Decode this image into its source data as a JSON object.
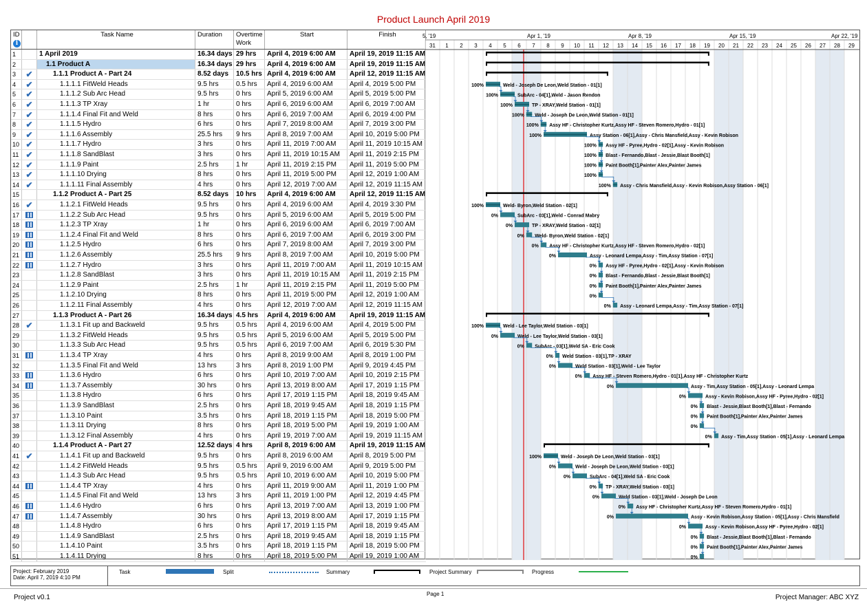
{
  "title": "Product Launch April 2019",
  "columns": {
    "id": "ID",
    "name": "Task Name",
    "duration": "Duration",
    "overtime": "Overtime Work",
    "start": "Start",
    "finish": "Finish"
  },
  "timescale": {
    "weeks": [
      "5, '19",
      "Apr 1, '19",
      "Apr 8, '19",
      "Apr 15, '19",
      "Apr 22, '19"
    ],
    "days": [
      "31",
      "1",
      "2",
      "3",
      "4",
      "5",
      "6",
      "7",
      "8",
      "9",
      "10",
      "11",
      "12",
      "13",
      "14",
      "15",
      "16",
      "17",
      "18",
      "19",
      "20",
      "21",
      "22",
      "23",
      "24",
      "25",
      "26",
      "27",
      "28",
      "29"
    ]
  },
  "tasks": [
    {
      "id": "1",
      "ind": "",
      "name": "1 April 2019",
      "dur": "16.34 days",
      "ot": "29 hrs",
      "start": "April 4, 2019 6:00 AM",
      "finish": "April 19, 2019 11:15 AM",
      "lvl": 0,
      "bold": true,
      "type": "summary",
      "s": 4,
      "e": 19.47
    },
    {
      "id": "2",
      "ind": "",
      "name": "1.1 Product A",
      "dur": "16.34 days",
      "ot": "29 hrs",
      "start": "April 4, 2019 6:00 AM",
      "finish": "April 19, 2019 11:15 AM",
      "lvl": 1,
      "bold": true,
      "sel": true,
      "type": "summary",
      "s": 4,
      "e": 19.47
    },
    {
      "id": "3",
      "ind": "check",
      "name": "1.1.1 Product A - Part 24",
      "dur": "8.52 days",
      "ot": "10.5 hrs",
      "start": "April 4, 2019 6:00 AM",
      "finish": "April 12, 2019 11:15 AM",
      "lvl": 2,
      "bold": true,
      "type": "summary",
      "s": 4,
      "e": 12.47
    },
    {
      "id": "4",
      "ind": "check",
      "name": "1.1.1.1 FitWeld Heads",
      "dur": "9.5 hrs",
      "ot": "0.5 hrs",
      "start": "April 4, 2019 6:00 AM",
      "finish": "April 4, 2019 5:00 PM",
      "lvl": 3,
      "type": "task",
      "s": 4,
      "e": 5,
      "p": "100%",
      "lbl": "Weld - Joseph De Leon,Weld Station - 01[1]"
    },
    {
      "id": "5",
      "ind": "check",
      "name": "1.1.1.2 Sub Arc Head",
      "dur": "9.5 hrs",
      "ot": "0 hrs",
      "start": "April 5, 2019 6:00 AM",
      "finish": "April 5, 2019 5:00 PM",
      "lvl": 3,
      "type": "task",
      "s": 5,
      "e": 6,
      "p": "100%",
      "lbl": "SubArc - 04[1],Weld - Jason Rendon"
    },
    {
      "id": "6",
      "ind": "check",
      "name": "1.1.1.3 TP Xray",
      "dur": "1 hr",
      "ot": "0 hrs",
      "start": "April 6, 2019 6:00 AM",
      "finish": "April 6, 2019 7:00 AM",
      "lvl": 3,
      "type": "task",
      "s": 6,
      "e": 7,
      "p": "100%",
      "lbl": "TP - XRAY,Weld Station - 01[1]"
    },
    {
      "id": "7",
      "ind": "check",
      "name": "1.1.1.4 Final Fit and Weld",
      "dur": "8 hrs",
      "ot": "0 hrs",
      "start": "April 6, 2019 7:00 AM",
      "finish": "April 6, 2019 4:00 PM",
      "lvl": 3,
      "type": "task",
      "s": 6.8,
      "e": 7.2,
      "p": "100%",
      "lbl": "Weld - Joseph De Leon,Weld Station - 01[1]"
    },
    {
      "id": "8",
      "ind": "check",
      "name": "1.1.1.5 Hydro",
      "dur": "6 hrs",
      "ot": "0 hrs",
      "start": "April 7, 2019 8:00 AM",
      "finish": "April 7, 2019 3:00 PM",
      "lvl": 3,
      "type": "task",
      "s": 7.8,
      "e": 8.2,
      "p": "100%",
      "lbl": "Assy HF - Christopher Kurtz,Assy HF - Steven Romero,Hydro - 01[1]"
    },
    {
      "id": "9",
      "ind": "check",
      "name": "1.1.1.6 Assembly",
      "dur": "25.5 hrs",
      "ot": "9 hrs",
      "start": "April 8, 2019 7:00 AM",
      "finish": "April 10, 2019 5:00 PM",
      "lvl": 3,
      "type": "task",
      "s": 8,
      "e": 11,
      "p": "100%",
      "lbl": "Assy Station - 06[1],Assy - Chris Mansfield,Assy - Kevin Robison"
    },
    {
      "id": "10",
      "ind": "check",
      "name": "1.1.1.7 Hydro",
      "dur": "3 hrs",
      "ot": "0 hrs",
      "start": "April 11, 2019 7:00 AM",
      "finish": "April 11, 2019 10:15 AM",
      "lvl": 3,
      "type": "task",
      "s": 11.8,
      "e": 12.1,
      "p": "100%",
      "lbl": "Assy HF - Pyree,Hydro - 02[1],Assy - Kevin Robison"
    },
    {
      "id": "11",
      "ind": "check",
      "name": "1.1.1.8 SandBlast",
      "dur": "3 hrs",
      "ot": "0 hrs",
      "start": "April 11, 2019 10:15 AM",
      "finish": "April 11, 2019 2:15 PM",
      "lvl": 3,
      "type": "task",
      "s": 11.8,
      "e": 12.1,
      "p": "100%",
      "lbl": "Blast - Fernando,Blast - Jessie,Blast Booth[1]"
    },
    {
      "id": "12",
      "ind": "check",
      "name": "1.1.1.9 Paint",
      "dur": "2.5 hrs",
      "ot": "1 hr",
      "start": "April 11, 2019 2:15 PM",
      "finish": "April 11, 2019 5:00 PM",
      "lvl": 3,
      "type": "task",
      "s": 11.8,
      "e": 12.1,
      "p": "100%",
      "lbl": "Paint Booth[1],Painter Alex,Painter James"
    },
    {
      "id": "13",
      "ind": "check",
      "name": "1.1.1.10 Drying",
      "dur": "8 hrs",
      "ot": "0 hrs",
      "start": "April 11, 2019 5:00 PM",
      "finish": "April 12, 2019 1:00 AM",
      "lvl": 3,
      "type": "task",
      "s": 11.8,
      "e": 12.1,
      "p": "100%",
      "lbl": ""
    },
    {
      "id": "14",
      "ind": "check",
      "name": "1.1.1.11 Final Assembly",
      "dur": "4 hrs",
      "ot": "0 hrs",
      "start": "April 12, 2019 7:00 AM",
      "finish": "April 12, 2019 11:15 AM",
      "lvl": 3,
      "type": "task",
      "s": 12.8,
      "e": 13.1,
      "p": "100%",
      "lbl": "Assy - Chris Mansfield,Assy - Kevin Robison,Assy Station - 06[1]"
    },
    {
      "id": "15",
      "ind": "",
      "name": "1.1.2 Product A - Part 25",
      "dur": "8.52 days",
      "ot": "10 hrs",
      "start": "April 4, 2019 6:00 AM",
      "finish": "April 12, 2019 11:15 AM",
      "lvl": 2,
      "bold": true,
      "type": "summary",
      "s": 4,
      "e": 12.47
    },
    {
      "id": "16",
      "ind": "check",
      "name": "1.1.2.1 FitWeld Heads",
      "dur": "9.5 hrs",
      "ot": "0 hrs",
      "start": "April 4, 2019 6:00 AM",
      "finish": "April 4, 2019 3:30 PM",
      "lvl": 3,
      "type": "task",
      "s": 4,
      "e": 5,
      "p": "100%",
      "lbl": "Weld- Byron,Weld Station - 02[1]"
    },
    {
      "id": "17",
      "ind": "cal",
      "name": "1.1.2.2 Sub Arc Head",
      "dur": "9.5 hrs",
      "ot": "0 hrs",
      "start": "April 5, 2019 6:00 AM",
      "finish": "April 5, 2019 5:00 PM",
      "lvl": 3,
      "type": "task",
      "s": 5,
      "e": 6,
      "p": "0%",
      "lbl": "SubArc - 03[1],Weld - Conrad Mabry"
    },
    {
      "id": "18",
      "ind": "cal",
      "name": "1.1.2.3 TP Xray",
      "dur": "1 hr",
      "ot": "0 hrs",
      "start": "April 6, 2019 6:00 AM",
      "finish": "April 6, 2019 7:00 AM",
      "lvl": 3,
      "type": "task",
      "s": 6,
      "e": 7,
      "p": "0%",
      "lbl": "TP - XRAY,Weld Station - 02[1]"
    },
    {
      "id": "19",
      "ind": "cal",
      "name": "1.1.2.4 Final Fit and Weld",
      "dur": "8 hrs",
      "ot": "0 hrs",
      "start": "April 6, 2019 7:00 AM",
      "finish": "April 6, 2019 3:00 PM",
      "lvl": 3,
      "type": "task",
      "s": 6.8,
      "e": 7.2,
      "p": "0%",
      "lbl": "Weld- Byron,Weld Station - 02[1]"
    },
    {
      "id": "20",
      "ind": "cal",
      "name": "1.1.2.5 Hydro",
      "dur": "6 hrs",
      "ot": "0 hrs",
      "start": "April 7, 2019 8:00 AM",
      "finish": "April 7, 2019 3:00 PM",
      "lvl": 3,
      "type": "task",
      "s": 7.8,
      "e": 8.2,
      "p": "0%",
      "lbl": "Assy HF - Christopher Kurtz,Assy HF - Steven Romero,Hydro - 02[1]"
    },
    {
      "id": "21",
      "ind": "cal",
      "name": "1.1.2.6 Assembly",
      "dur": "25.5 hrs",
      "ot": "9 hrs",
      "start": "April 8, 2019 7:00 AM",
      "finish": "April 10, 2019 5:00 PM",
      "lvl": 3,
      "type": "task",
      "s": 9,
      "e": 11,
      "p": "0%",
      "lbl": "Assy - Leonard Lempa,Assy - Tim,Assy Station - 07[1]"
    },
    {
      "id": "22",
      "ind": "cal",
      "name": "1.1.2.7 Hydro",
      "dur": "3 hrs",
      "ot": "0 hrs",
      "start": "April 11, 2019 7:00 AM",
      "finish": "April 11, 2019 10:15 AM",
      "lvl": 3,
      "type": "task",
      "s": 11.8,
      "e": 12.1,
      "p": "0%",
      "lbl": "Assy HF - Pyree,Hydro - 02[1],Assy - Kevin Robison"
    },
    {
      "id": "23",
      "ind": "",
      "name": "1.1.2.8 SandBlast",
      "dur": "3 hrs",
      "ot": "0 hrs",
      "start": "April 11, 2019 10:15 AM",
      "finish": "April 11, 2019 2:15 PM",
      "lvl": 3,
      "type": "task",
      "s": 11.8,
      "e": 12.1,
      "p": "0%",
      "lbl": "Blast - Fernando,Blast - Jessie,Blast Booth[1]"
    },
    {
      "id": "24",
      "ind": "",
      "name": "1.1.2.9 Paint",
      "dur": "2.5 hrs",
      "ot": "1 hr",
      "start": "April 11, 2019 2:15 PM",
      "finish": "April 11, 2019 5:00 PM",
      "lvl": 3,
      "type": "task",
      "s": 11.8,
      "e": 12.1,
      "p": "0%",
      "lbl": "Paint Booth[1],Painter Alex,Painter James"
    },
    {
      "id": "25",
      "ind": "",
      "name": "1.1.2.10 Drying",
      "dur": "8 hrs",
      "ot": "0 hrs",
      "start": "April 11, 2019 5:00 PM",
      "finish": "April 12, 2019 1:00 AM",
      "lvl": 3,
      "type": "task",
      "s": 11.8,
      "e": 12.1,
      "p": "0%",
      "lbl": ""
    },
    {
      "id": "26",
      "ind": "",
      "name": "1.1.2.11 Final Assembly",
      "dur": "4 hrs",
      "ot": "0 hrs",
      "start": "April 12, 2019 7:00 AM",
      "finish": "April 12, 2019 11:15 AM",
      "lvl": 3,
      "type": "task",
      "s": 12.8,
      "e": 13.1,
      "p": "0%",
      "lbl": "Assy - Leonard Lempa,Assy - Tim,Assy Station - 07[1]"
    },
    {
      "id": "27",
      "ind": "",
      "name": "1.1.3 Product A - Part 26",
      "dur": "16.34 days",
      "ot": "4.5 hrs",
      "start": "April 4, 2019 6:00 AM",
      "finish": "April 19, 2019 11:15 AM",
      "lvl": 2,
      "bold": true,
      "type": "summary",
      "s": 4,
      "e": 19.47
    },
    {
      "id": "28",
      "ind": "check",
      "name": "1.1.3.1 Fit up and Backweld",
      "dur": "9.5 hrs",
      "ot": "0.5 hrs",
      "start": "April 4, 2019 6:00 AM",
      "finish": "April 4, 2019 5:00 PM",
      "lvl": 3,
      "type": "task",
      "s": 4,
      "e": 5,
      "p": "100%",
      "lbl": "Weld - Lee Taylor,Weld Station - 03[1]"
    },
    {
      "id": "29",
      "ind": "",
      "name": "1.1.3.2 FitWeld Heads",
      "dur": "9.5 hrs",
      "ot": "0.5 hrs",
      "start": "April 5, 2019 6:00 AM",
      "finish": "April 5, 2019 5:00 PM",
      "lvl": 3,
      "type": "task",
      "s": 5,
      "e": 6,
      "p": "0%",
      "lbl": "Weld - Lee Taylor,Weld Station - 03[1]"
    },
    {
      "id": "30",
      "ind": "",
      "name": "1.1.3.3 Sub Arc Head",
      "dur": "9.5 hrs",
      "ot": "0.5 hrs",
      "start": "April 6, 2019 7:00 AM",
      "finish": "April 6, 2019 5:30 PM",
      "lvl": 3,
      "type": "task",
      "s": 6.8,
      "e": 7.2,
      "p": "0%",
      "lbl": "SubArc - 03[1],Weld SA - Eric Cook"
    },
    {
      "id": "31",
      "ind": "cal",
      "name": "1.1.3.4 TP Xray",
      "dur": "4 hrs",
      "ot": "0 hrs",
      "start": "April 8, 2019 9:00 AM",
      "finish": "April 8, 2019 1:00 PM",
      "lvl": 3,
      "type": "task",
      "s": 8.8,
      "e": 9.1,
      "p": "0%",
      "lbl": "Weld Station - 03[1],TP - XRAY"
    },
    {
      "id": "32",
      "ind": "",
      "name": "1.1.3.5 Final Fit and Weld",
      "dur": "13 hrs",
      "ot": "3 hrs",
      "start": "April 8, 2019 1:00 PM",
      "finish": "April 9, 2019 4:45 PM",
      "lvl": 3,
      "type": "task",
      "s": 9,
      "e": 10,
      "p": "0%",
      "lbl": "Weld Station - 03[1],Weld - Lee Taylor"
    },
    {
      "id": "33",
      "ind": "cal",
      "name": "1.1.3.6 Hydro",
      "dur": "6 hrs",
      "ot": "0 hrs",
      "start": "April 10, 2019 7:00 AM",
      "finish": "April 10, 2019 2:15 PM",
      "lvl": 3,
      "type": "task",
      "s": 10.8,
      "e": 11.2,
      "p": "0%",
      "lbl": "Assy HF - Steven Romero,Hydro - 01[1],Assy HF - Christopher Kurtz"
    },
    {
      "id": "34",
      "ind": "cal",
      "name": "1.1.3.7 Assembly",
      "dur": "30 hrs",
      "ot": "0 hrs",
      "start": "April 13, 2019 8:00 AM",
      "finish": "April 17, 2019 1:15 PM",
      "lvl": 3,
      "type": "task",
      "s": 13,
      "e": 18,
      "p": "0%",
      "lbl": "Assy - Tim,Assy Station - 05[1],Assy - Leonard Lempa"
    },
    {
      "id": "35",
      "ind": "",
      "name": "1.1.3.8 Hydro",
      "dur": "6 hrs",
      "ot": "0 hrs",
      "start": "April 17, 2019 1:15 PM",
      "finish": "April 18, 2019 9:45 AM",
      "lvl": 3,
      "type": "task",
      "s": 18,
      "e": 19,
      "p": "0%",
      "lbl": "Assy - Kevin Robison,Assy HF - Pyree,Hydro - 02[1]"
    },
    {
      "id": "36",
      "ind": "",
      "name": "1.1.3.9 SandBlast",
      "dur": "2.5 hrs",
      "ot": "0 hrs",
      "start": "April 18, 2019 9:45 AM",
      "finish": "April 18, 2019 1:15 PM",
      "lvl": 3,
      "type": "task",
      "s": 18.8,
      "e": 19.1,
      "p": "0%",
      "lbl": "Blast - Jessie,Blast Booth[1],Blast - Fernando"
    },
    {
      "id": "37",
      "ind": "",
      "name": "1.1.3.10 Paint",
      "dur": "3.5 hrs",
      "ot": "0 hrs",
      "start": "April 18, 2019 1:15 PM",
      "finish": "April 18, 2019 5:00 PM",
      "lvl": 3,
      "type": "task",
      "s": 18.8,
      "e": 19.1,
      "p": "0%",
      "lbl": "Paint Booth[1],Painter Alex,Painter James"
    },
    {
      "id": "38",
      "ind": "",
      "name": "1.1.3.11 Drying",
      "dur": "8 hrs",
      "ot": "0 hrs",
      "start": "April 18, 2019 5:00 PM",
      "finish": "April 19, 2019 1:00 AM",
      "lvl": 3,
      "type": "task",
      "s": 18.8,
      "e": 19.1,
      "p": "0%",
      "lbl": ""
    },
    {
      "id": "39",
      "ind": "",
      "name": "1.1.3.12 Final Assembly",
      "dur": "4 hrs",
      "ot": "0 hrs",
      "start": "April 19, 2019 7:00 AM",
      "finish": "April 19, 2019 11:15 AM",
      "lvl": 3,
      "type": "task",
      "s": 19.8,
      "e": 20.1,
      "p": "0%",
      "lbl": "Assy - Tim,Assy Station - 05[1],Assy - Leonard Lempa"
    },
    {
      "id": "40",
      "ind": "",
      "name": "1.1.4 Product A - Part 27",
      "dur": "12.52 days",
      "ot": "4 hrs",
      "start": "April 8, 2019 6:00 AM",
      "finish": "April 19, 2019 11:15 AM",
      "lvl": 2,
      "bold": true,
      "type": "summary",
      "s": 8,
      "e": 19.47
    },
    {
      "id": "41",
      "ind": "check",
      "name": "1.1.4.1 Fit up and Backweld",
      "dur": "9.5 hrs",
      "ot": "0 hrs",
      "start": "April 8, 2019 6:00 AM",
      "finish": "April 8, 2019 5:00 PM",
      "lvl": 3,
      "type": "task",
      "s": 8,
      "e": 9,
      "p": "100%",
      "lbl": "Weld - Joseph De Leon,Weld Station - 03[1]"
    },
    {
      "id": "42",
      "ind": "",
      "name": "1.1.4.2 FitWeld Heads",
      "dur": "9.5 hrs",
      "ot": "0.5 hrs",
      "start": "April 9, 2019 6:00 AM",
      "finish": "April 9, 2019 5:00 PM",
      "lvl": 3,
      "type": "task",
      "s": 9,
      "e": 10,
      "p": "0%",
      "lbl": "Weld - Joseph De Leon,Weld Station - 03[1]"
    },
    {
      "id": "43",
      "ind": "",
      "name": "1.1.4.3 Sub Arc Head",
      "dur": "9.5 hrs",
      "ot": "0.5 hrs",
      "start": "April 10, 2019 6:00 AM",
      "finish": "April 10, 2019 5:00 PM",
      "lvl": 3,
      "type": "task",
      "s": 10,
      "e": 11,
      "p": "0%",
      "lbl": "SubArc - 04[1],Weld SA - Eric Cook"
    },
    {
      "id": "44",
      "ind": "cal",
      "name": "1.1.4.4 TP Xray",
      "dur": "4 hrs",
      "ot": "0 hrs",
      "start": "April 11, 2019 9:00 AM",
      "finish": "April 11, 2019 1:00 PM",
      "lvl": 3,
      "type": "task",
      "s": 11.8,
      "e": 12.1,
      "p": "0%",
      "lbl": "TP - XRAY,Weld Station - 03[1]"
    },
    {
      "id": "45",
      "ind": "",
      "name": "1.1.4.5 Final Fit and Weld",
      "dur": "13 hrs",
      "ot": "3 hrs",
      "start": "April 11, 2019 1:00 PM",
      "finish": "April 12, 2019 4:45 PM",
      "lvl": 3,
      "type": "task",
      "s": 12,
      "e": 13,
      "p": "0%",
      "lbl": "Weld Station - 03[1],Weld - Joseph De Leon"
    },
    {
      "id": "46",
      "ind": "cal",
      "name": "1.1.4.6 Hydro",
      "dur": "6 hrs",
      "ot": "0 hrs",
      "start": "April 13, 2019 7:00 AM",
      "finish": "April 13, 2019 1:00 PM",
      "lvl": 3,
      "type": "task",
      "s": 13.8,
      "e": 14.2,
      "p": "0%",
      "lbl": "Assy HF - Christopher Kurtz,Assy HF - Steven Romero,Hydro - 01[1]"
    },
    {
      "id": "47",
      "ind": "cal",
      "name": "1.1.4.7 Assembly",
      "dur": "30 hrs",
      "ot": "0 hrs",
      "start": "April 13, 2019 8:00 AM",
      "finish": "April 17, 2019 1:15 PM",
      "lvl": 3,
      "type": "task",
      "s": 13,
      "e": 18,
      "p": "0%",
      "lbl": "Assy - Kevin Robison,Assy Station - 05[1],Assy - Chris Mansfield"
    },
    {
      "id": "48",
      "ind": "",
      "name": "1.1.4.8 Hydro",
      "dur": "6 hrs",
      "ot": "0 hrs",
      "start": "April 17, 2019 1:15 PM",
      "finish": "April 18, 2019 9:45 AM",
      "lvl": 3,
      "type": "task",
      "s": 18,
      "e": 19,
      "p": "0%",
      "lbl": "Assy - Kevin Robison,Assy HF - Pyree,Hydro - 02[1]"
    },
    {
      "id": "49",
      "ind": "",
      "name": "1.1.4.9 SandBlast",
      "dur": "2.5 hrs",
      "ot": "0 hrs",
      "start": "April 18, 2019 9:45 AM",
      "finish": "April 18, 2019 1:15 PM",
      "lvl": 3,
      "type": "task",
      "s": 18.8,
      "e": 19.1,
      "p": "0%",
      "lbl": "Blast - Jessie,Blast Booth[1],Blast - Fernando"
    },
    {
      "id": "50",
      "ind": "",
      "name": "1.1.4.10 Paint",
      "dur": "3.5 hrs",
      "ot": "0 hrs",
      "start": "April 18, 2019 1:15 PM",
      "finish": "April 18, 2019 5:00 PM",
      "lvl": 3,
      "type": "task",
      "s": 18.8,
      "e": 19.1,
      "p": "0%",
      "lbl": "Paint Booth[1],Painter Alex,Painter James"
    },
    {
      "id": "51",
      "ind": "",
      "name": "1.1.4.11 Drying",
      "dur": "8 hrs",
      "ot": "0 hrs",
      "start": "April 18, 2019 5:00 PM",
      "finish": "April 19, 2019 1:00 AM",
      "lvl": 3,
      "type": "task",
      "s": 18.8,
      "e": 19.1,
      "p": "0%",
      "lbl": ""
    }
  ],
  "legend": {
    "project": "Project: February 2019",
    "date": "Date: April 7, 2019 4:10 PM",
    "task": "Task",
    "split": "Split",
    "summary": "Summary",
    "project_summary": "Project Summary",
    "progress": "Progress"
  },
  "footer": {
    "left": "Project v0.1",
    "center": "Page 1",
    "right": "Project Manager: ABC  XYZ"
  },
  "colors": {
    "bar": "#2e7d8c",
    "summary": "#000000",
    "today": "#e01010",
    "weekend": "#e3eaf2",
    "selected": "#bdd7ee",
    "progress": "#2bb04a",
    "split": "#2e75b6"
  },
  "today_marker": 7
}
